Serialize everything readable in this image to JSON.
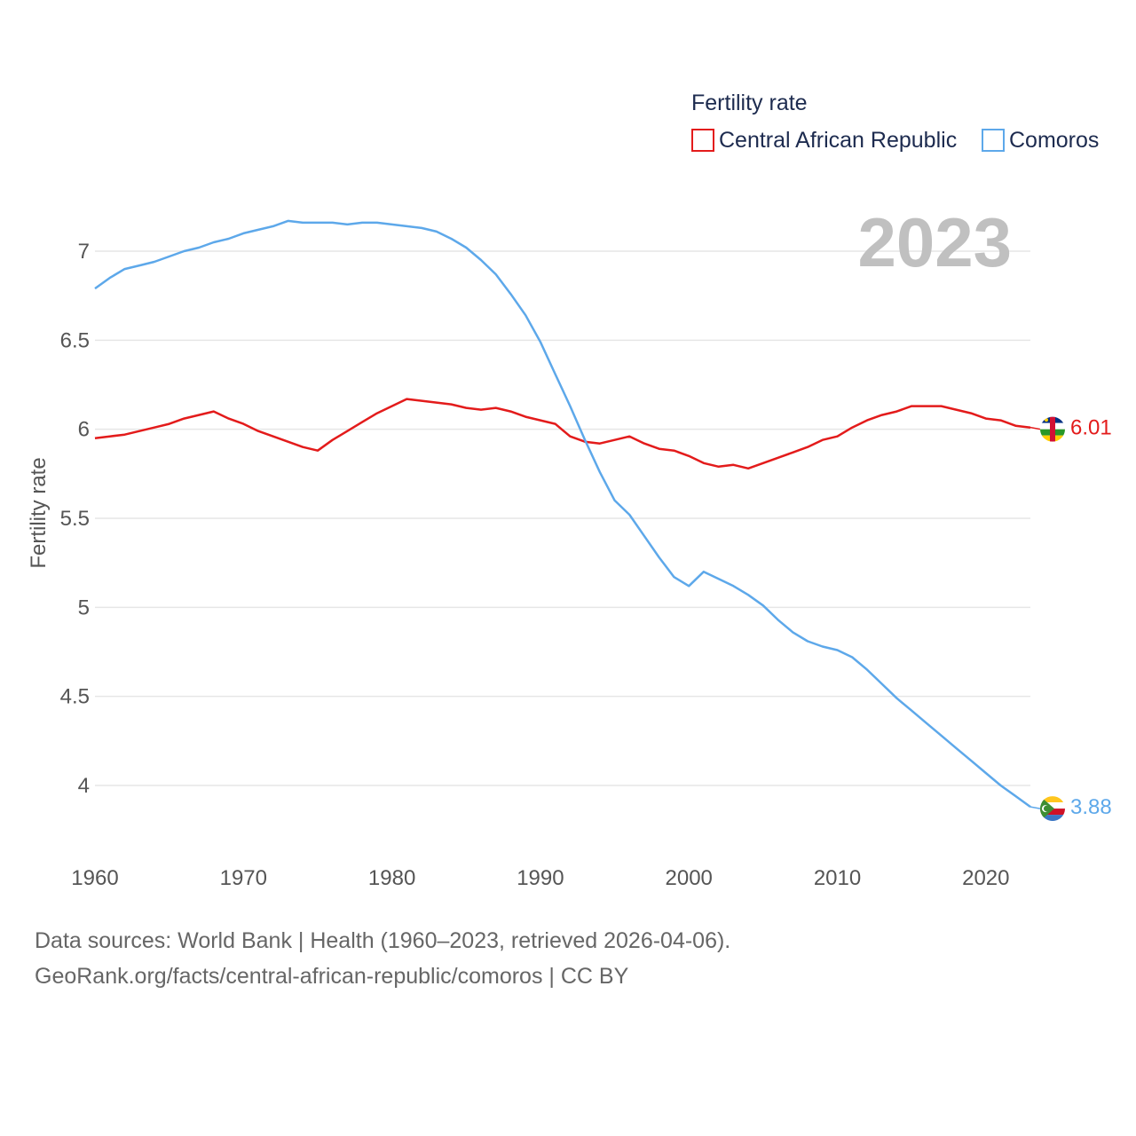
{
  "colors": {
    "car": "#e31b1b",
    "comoros": "#5da8ea"
  },
  "legend": {
    "title": "Fertility rate"
  },
  "year_label": "2023",
  "footer": {
    "line1": "Data sources: World Bank | Health (1960–2023, retrieved 2026-04-06).",
    "line2": "GeoRank.org/facts/central-african-republic/comoros | CC BY"
  },
  "chart_data": {
    "type": "line",
    "title": "Fertility rate",
    "xlabel": "",
    "ylabel": "Fertility rate",
    "xlim": [
      1960,
      2023
    ],
    "ylim": [
      3.7,
      7.3
    ],
    "x_ticks": [
      1960,
      1970,
      1980,
      1990,
      2000,
      2010,
      2020
    ],
    "y_ticks": [
      4,
      4.5,
      5,
      5.5,
      6,
      6.5,
      7
    ],
    "y_tick_labels": [
      "4",
      "4.5",
      "5",
      "5.5",
      "6",
      "6.5",
      "7"
    ],
    "grid": true,
    "legend_position": "top-right",
    "x": [
      1960,
      1961,
      1962,
      1963,
      1964,
      1965,
      1966,
      1967,
      1968,
      1969,
      1970,
      1971,
      1972,
      1973,
      1974,
      1975,
      1976,
      1977,
      1978,
      1979,
      1980,
      1981,
      1982,
      1983,
      1984,
      1985,
      1986,
      1987,
      1988,
      1989,
      1990,
      1991,
      1992,
      1993,
      1994,
      1995,
      1996,
      1997,
      1998,
      1999,
      2000,
      2001,
      2002,
      2003,
      2004,
      2005,
      2006,
      2007,
      2008,
      2009,
      2010,
      2011,
      2012,
      2013,
      2014,
      2015,
      2016,
      2017,
      2018,
      2019,
      2020,
      2021,
      2022,
      2023
    ],
    "series": [
      {
        "name": "Central African Republic",
        "color": "#e31b1b",
        "end_label": "6.01",
        "values": [
          5.95,
          5.96,
          5.97,
          5.99,
          6.01,
          6.03,
          6.06,
          6.08,
          6.1,
          6.06,
          6.03,
          5.99,
          5.96,
          5.93,
          5.9,
          5.88,
          5.94,
          5.99,
          6.04,
          6.09,
          6.13,
          6.17,
          6.16,
          6.15,
          6.14,
          6.12,
          6.11,
          6.12,
          6.1,
          6.07,
          6.05,
          6.03,
          5.96,
          5.93,
          5.92,
          5.94,
          5.96,
          5.92,
          5.89,
          5.88,
          5.85,
          5.81,
          5.79,
          5.8,
          5.78,
          5.81,
          5.84,
          5.87,
          5.9,
          5.94,
          5.96,
          6.01,
          6.05,
          6.08,
          6.1,
          6.13,
          6.13,
          6.13,
          6.11,
          6.09,
          6.06,
          6.05,
          6.02,
          6.01
        ]
      },
      {
        "name": "Comoros",
        "color": "#5da8ea",
        "end_label": "3.88",
        "values": [
          6.79,
          6.85,
          6.9,
          6.92,
          6.94,
          6.97,
          7.0,
          7.02,
          7.05,
          7.07,
          7.1,
          7.12,
          7.14,
          7.17,
          7.16,
          7.16,
          7.16,
          7.15,
          7.16,
          7.16,
          7.15,
          7.14,
          7.13,
          7.11,
          7.07,
          7.02,
          6.95,
          6.87,
          6.76,
          6.64,
          6.49,
          6.31,
          6.13,
          5.94,
          5.76,
          5.6,
          5.52,
          5.4,
          5.28,
          5.17,
          5.12,
          5.2,
          5.16,
          5.12,
          5.07,
          5.01,
          4.93,
          4.86,
          4.81,
          4.78,
          4.76,
          4.72,
          4.65,
          4.57,
          4.49,
          4.42,
          4.35,
          4.28,
          4.21,
          4.14,
          4.07,
          4.0,
          3.94,
          3.88
        ]
      }
    ]
  }
}
